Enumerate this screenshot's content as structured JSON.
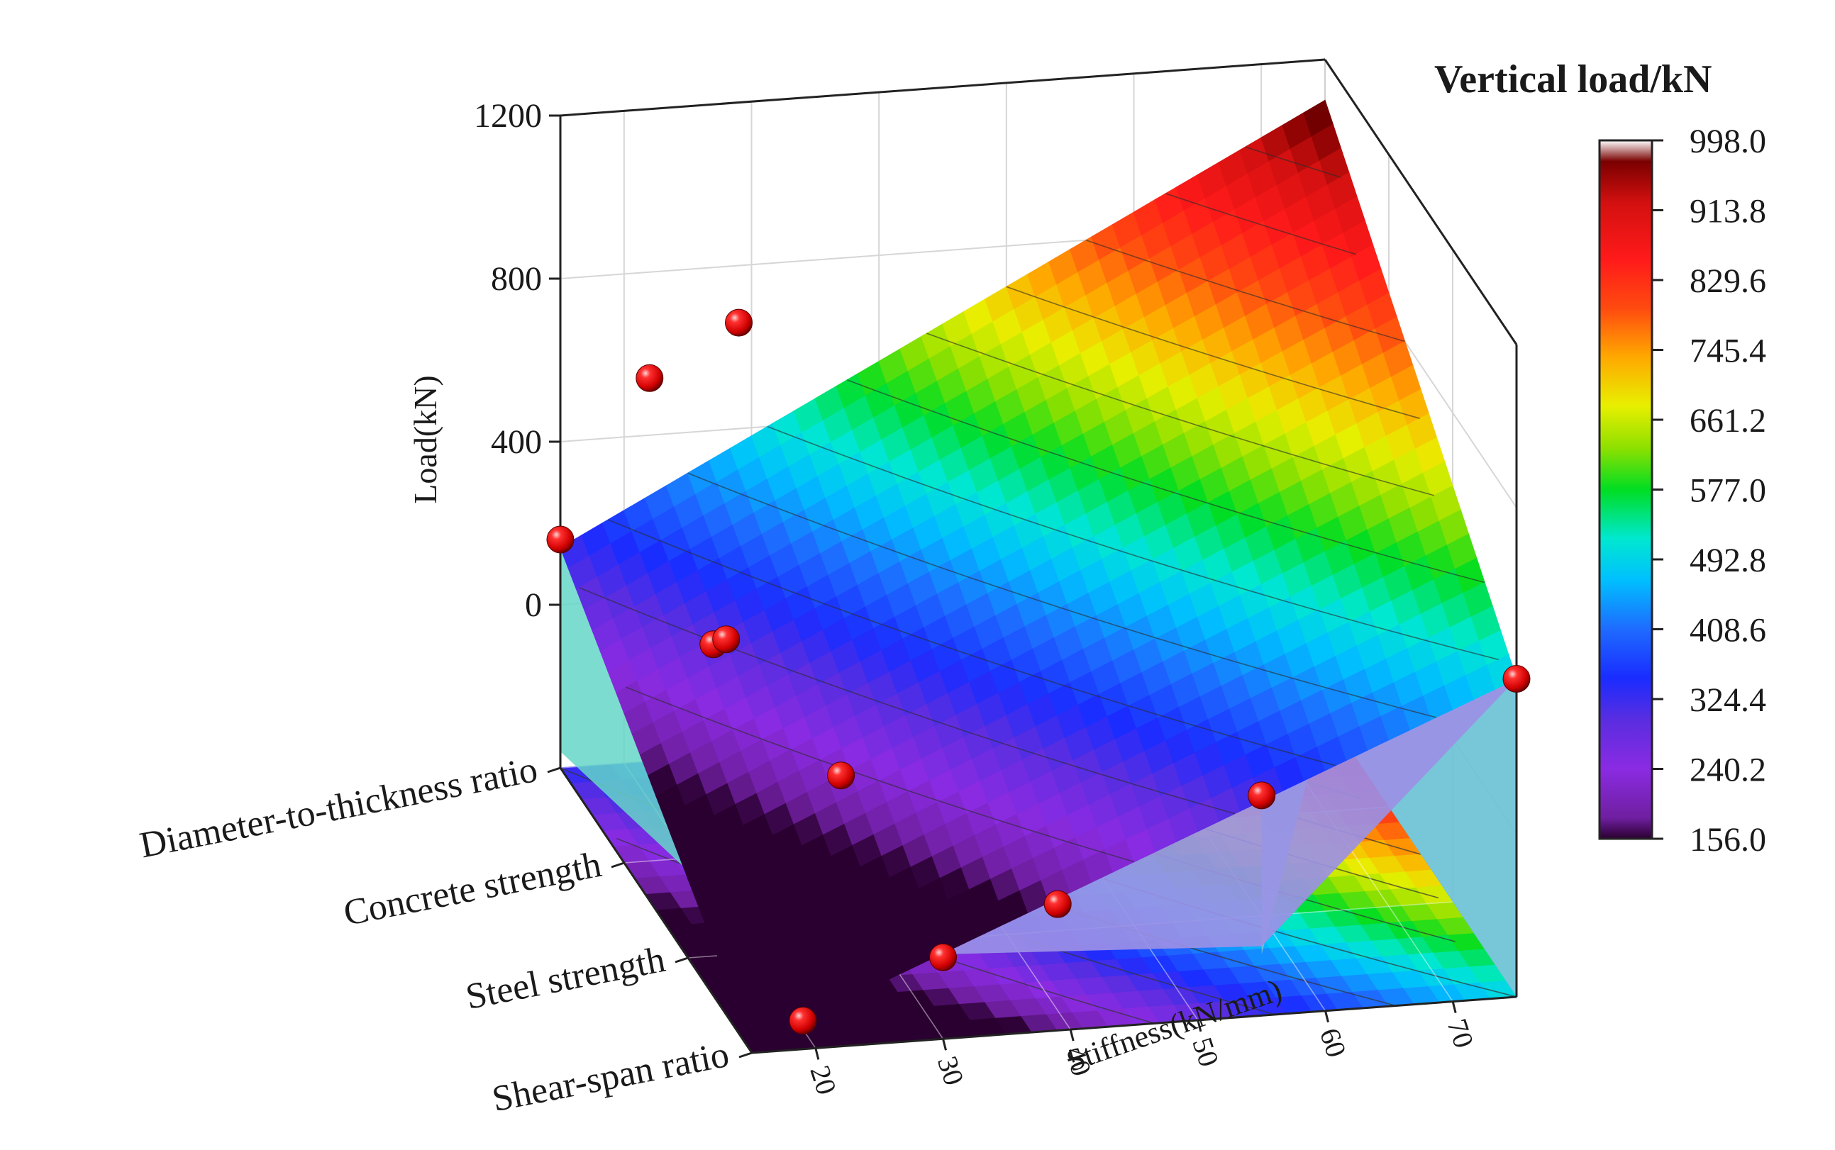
{
  "chart_data": {
    "type": "surface3d",
    "z_axis": {
      "label": "Load(kN)",
      "ticks": [
        0,
        400,
        800,
        1200
      ],
      "range": [
        -400,
        1200
      ]
    },
    "x_axis": {
      "label": "Stiffness(kN/mm)",
      "ticks": [
        20,
        30,
        40,
        50,
        60,
        70
      ],
      "range": [
        15,
        75
      ]
    },
    "y_axis": {
      "label": "",
      "categories": [
        "Diameter-to-thickness ratio",
        "Concrete strength",
        "Steel strength",
        "Shear-span ratio"
      ]
    },
    "colorbar": {
      "title": "Vertical load/kN",
      "ticks": [
        "998.0",
        "913.8",
        "829.6",
        "745.4",
        "661.2",
        "577.0",
        "492.8",
        "408.6",
        "324.4",
        "240.2",
        "156.0"
      ],
      "min": 156.0,
      "max": 998.0
    },
    "surface_corners": {
      "diameter_to_thickness_at_15": 140,
      "diameter_to_thickness_at_75": 1100,
      "shear_span_at_15": -380,
      "shear_span_at_75": 380
    },
    "points": [
      {
        "stiffness": 15,
        "factor": "Diameter-to-thickness ratio",
        "load": 160
      },
      {
        "stiffness": 19,
        "factor": "Shear-span ratio",
        "load": -330
      },
      {
        "stiffness": 22,
        "factor": "Diameter-to-thickness ratio",
        "load": 540
      },
      {
        "stiffness": 22,
        "factor": "Concrete strength",
        "load": 120
      },
      {
        "stiffness": 23,
        "factor": "Concrete strength",
        "load": 130
      },
      {
        "stiffness": 27,
        "factor": "Steel strength",
        "load": 20
      },
      {
        "stiffness": 29,
        "factor": "Diameter-to-thickness ratio",
        "load": 660
      },
      {
        "stiffness": 30,
        "factor": "Shear-span ratio",
        "load": -200
      },
      {
        "stiffness": 39,
        "factor": "Shear-span ratio",
        "load": -90
      },
      {
        "stiffness": 55,
        "factor": "Shear-span ratio",
        "load": 140
      },
      {
        "stiffness": 75,
        "factor": "Shear-span ratio",
        "load": 380
      }
    ]
  }
}
